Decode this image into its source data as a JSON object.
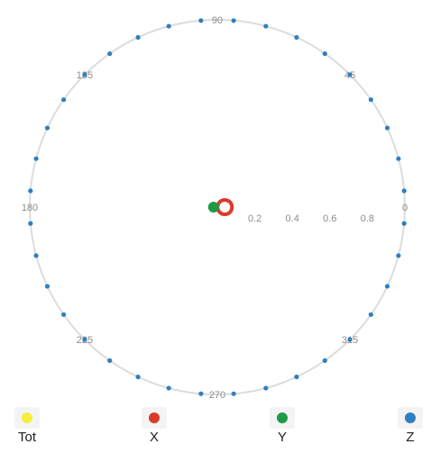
{
  "chart_data": {
    "type": "scatter",
    "projection": "polar",
    "angular_ticks": [
      "0",
      "45",
      "90",
      "135",
      "180",
      "225",
      "270",
      "315"
    ],
    "radial_ticks": [
      "0.2",
      "0.4",
      "0.6",
      "0.8"
    ],
    "radial_range": [
      0,
      1
    ],
    "grid": false,
    "legend_position": "bottom",
    "series": [
      {
        "name": "Tot",
        "color": "#f3ef3a",
        "points": []
      },
      {
        "name": "X",
        "color": "#d93b2b",
        "style": "ring",
        "points": [
          {
            "angle": 0,
            "r": 0.04
          }
        ]
      },
      {
        "name": "Y",
        "color": "#1f9a45",
        "points": [
          {
            "angle": 180,
            "r": 0.02
          }
        ]
      },
      {
        "name": "Z",
        "color": "#2f7fc1",
        "points": [
          {
            "angle": 5,
            "r": 1
          },
          {
            "angle": 15,
            "r": 1
          },
          {
            "angle": 25,
            "r": 1
          },
          {
            "angle": 35,
            "r": 1
          },
          {
            "angle": 45,
            "r": 1
          },
          {
            "angle": 55,
            "r": 1
          },
          {
            "angle": 65,
            "r": 1
          },
          {
            "angle": 75,
            "r": 1
          },
          {
            "angle": 85,
            "r": 1
          },
          {
            "angle": 95,
            "r": 1
          },
          {
            "angle": 105,
            "r": 1
          },
          {
            "angle": 115,
            "r": 1
          },
          {
            "angle": 125,
            "r": 1
          },
          {
            "angle": 135,
            "r": 1
          },
          {
            "angle": 145,
            "r": 1
          },
          {
            "angle": 155,
            "r": 1
          },
          {
            "angle": 165,
            "r": 1
          },
          {
            "angle": 175,
            "r": 1
          },
          {
            "angle": 185,
            "r": 1
          },
          {
            "angle": 195,
            "r": 1
          },
          {
            "angle": 205,
            "r": 1
          },
          {
            "angle": 215,
            "r": 1
          },
          {
            "angle": 225,
            "r": 1
          },
          {
            "angle": 235,
            "r": 1
          },
          {
            "angle": 245,
            "r": 1
          },
          {
            "angle": 255,
            "r": 1
          },
          {
            "angle": 265,
            "r": 1
          },
          {
            "angle": 275,
            "r": 1
          },
          {
            "angle": 285,
            "r": 1
          },
          {
            "angle": 295,
            "r": 1
          },
          {
            "angle": 305,
            "r": 1
          },
          {
            "angle": 315,
            "r": 1
          },
          {
            "angle": 325,
            "r": 1
          },
          {
            "angle": 335,
            "r": 1
          },
          {
            "angle": 345,
            "r": 1
          },
          {
            "angle": 355,
            "r": 1
          }
        ]
      }
    ]
  }
}
